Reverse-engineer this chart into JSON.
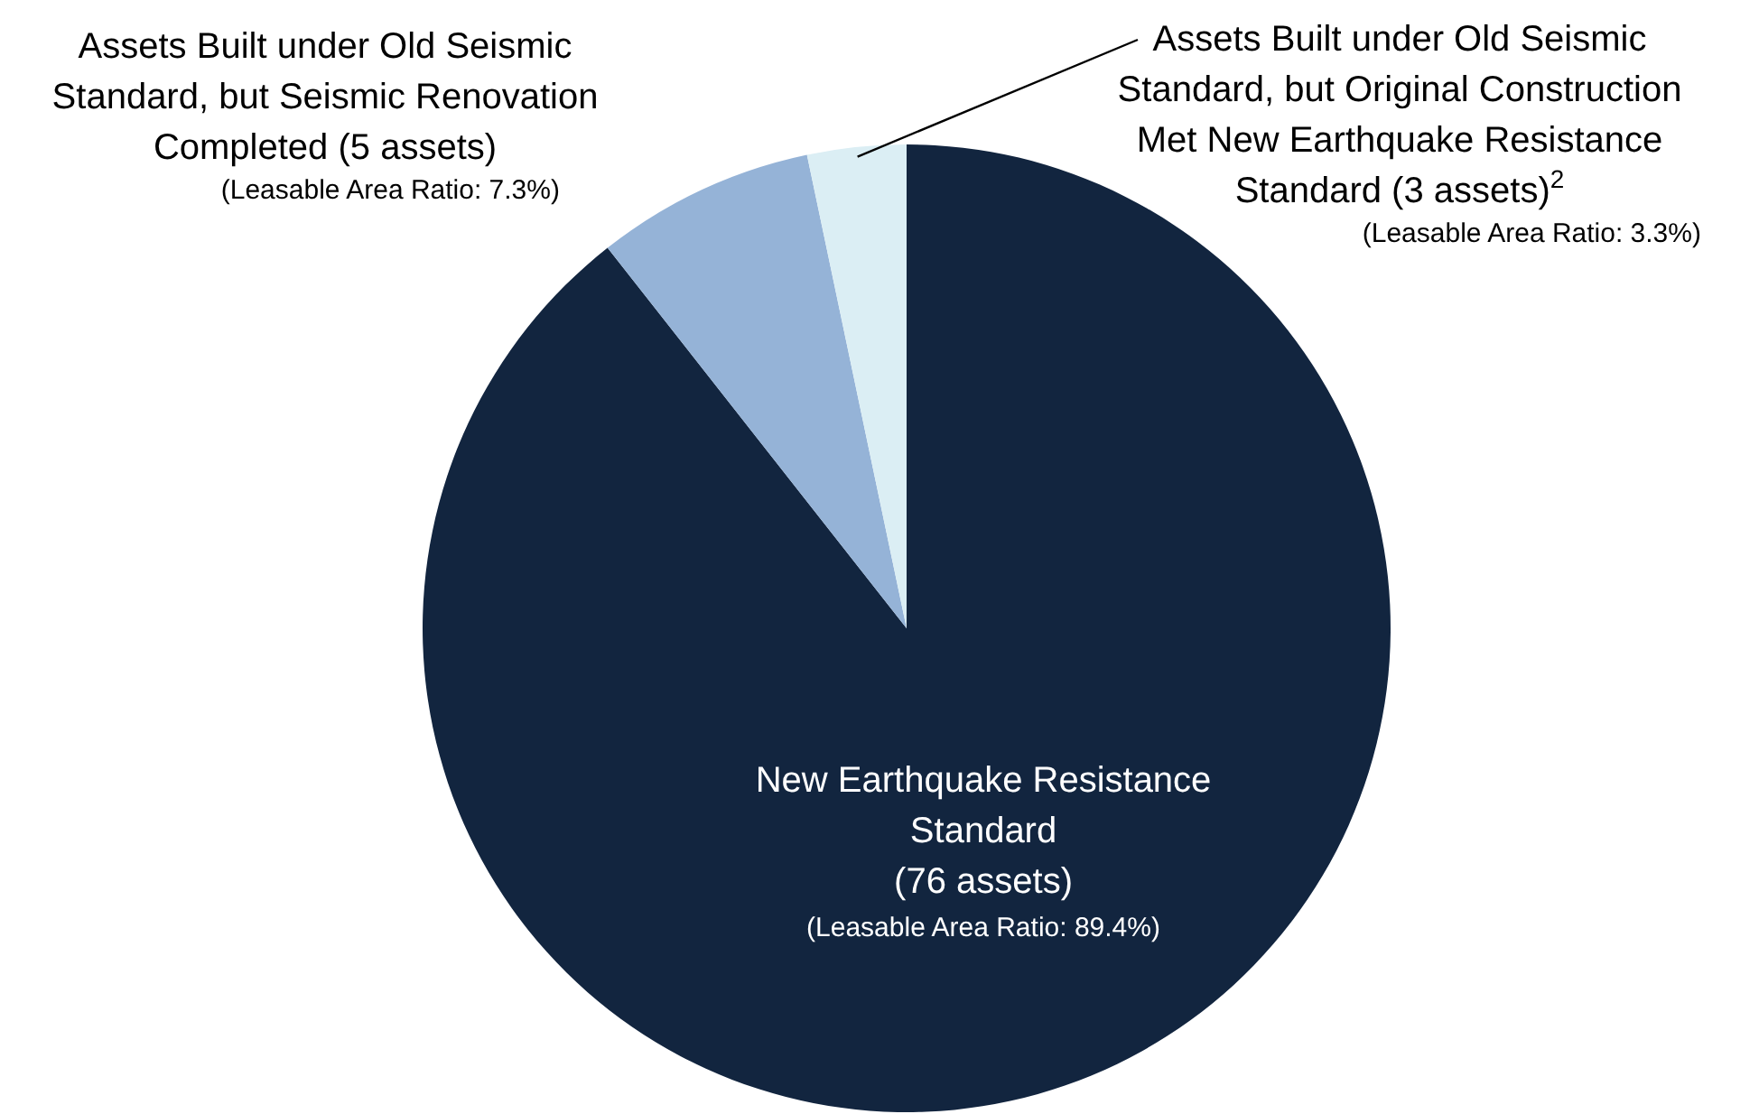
{
  "chart_data": {
    "type": "pie",
    "categories": [
      "New Earthquake Resistance\nStandard\n(76 assets)",
      "Assets Built under Old Seismic\nStandard, but Seismic Renovation\nCompleted (5 assets)",
      "Assets Built under Old Seismic\nStandard, but Original Construction\nMet New Earthquake Resistance\nStandard (3 assets)$^{2}$"
    ],
    "values": [
      89.4,
      7.3,
      3.3
    ],
    "colors": [
      "#12253f",
      "#95b3d7",
      "#dbeef4"
    ],
    "value_labels": [
      "(Leasable Area Ratio: 89.4%)",
      "(Leasable Area Ratio: 7.3%)",
      "(Leasable Area Ratio: 3.3%)"
    ]
  }
}
